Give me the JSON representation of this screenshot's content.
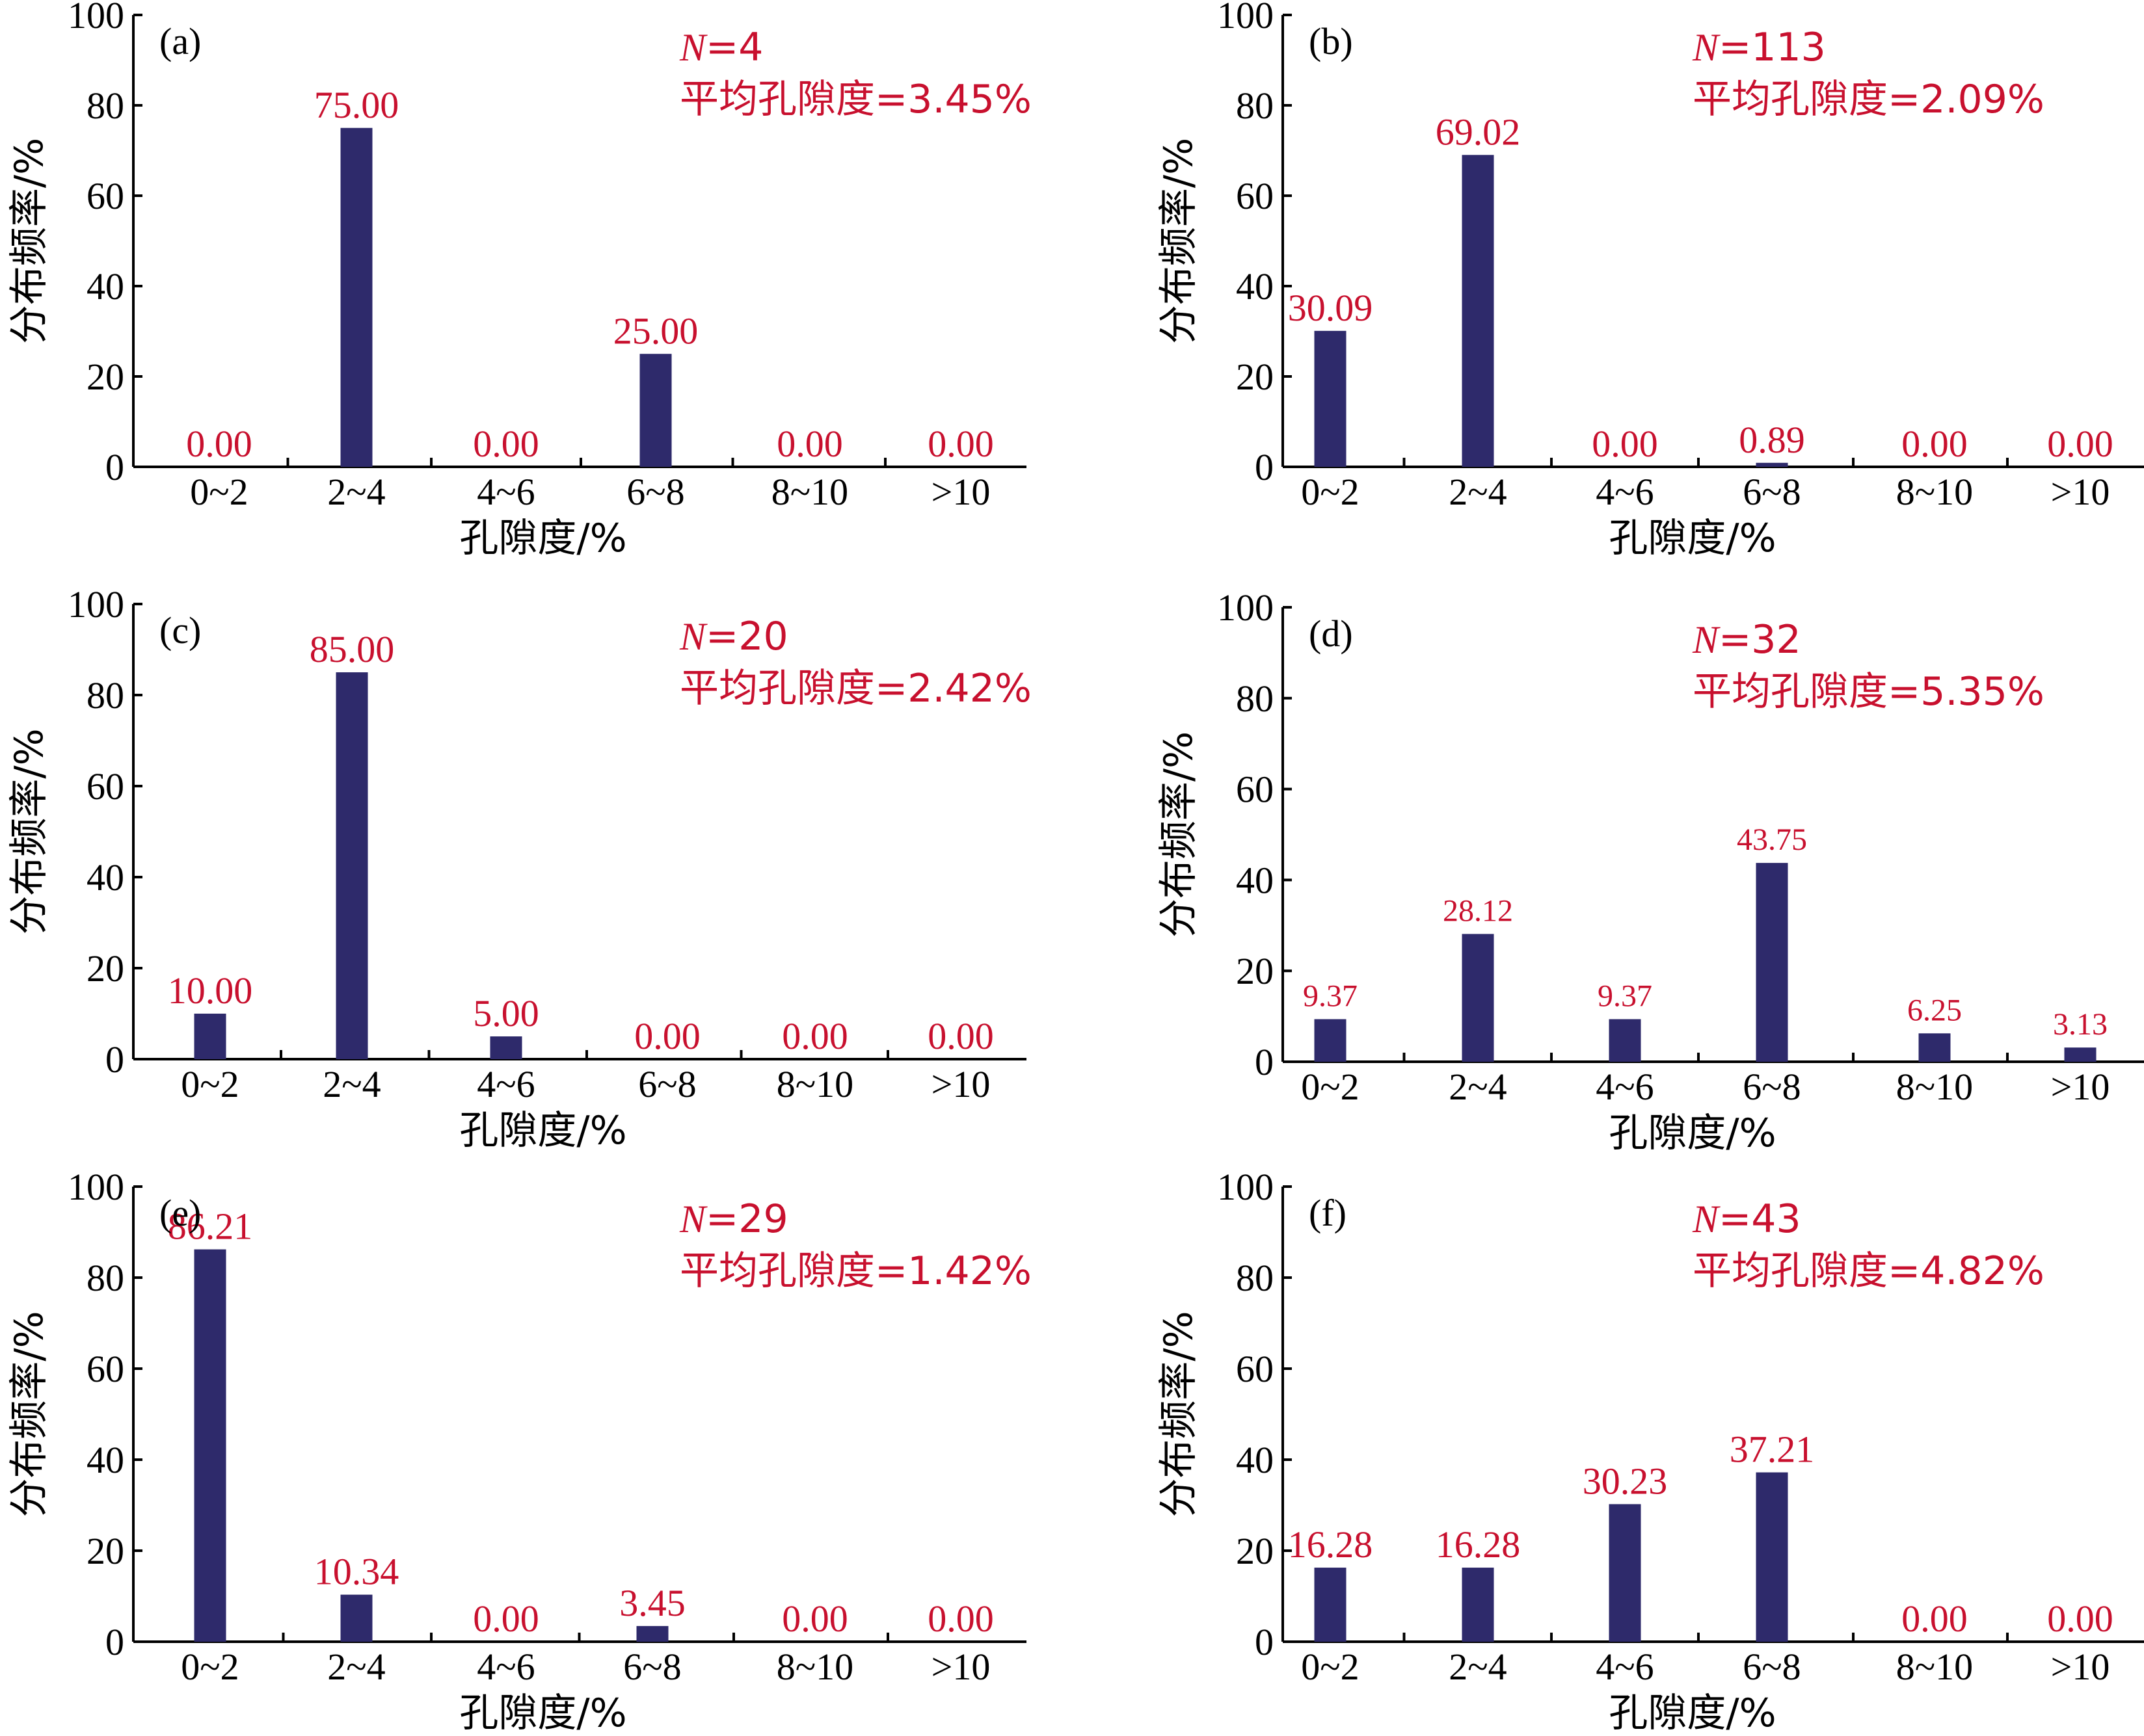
{
  "style": {
    "bar_color": "#2e2a6b",
    "label_color": "#c8102e",
    "axis_color": "#000000"
  },
  "chart_data": [
    {
      "type": "bar",
      "panel": "(a)",
      "categories": [
        "0~2",
        "2~4",
        "4~6",
        "6~8",
        "8~10",
        ">10"
      ],
      "values": [
        0.0,
        75.0,
        0.0,
        25.0,
        0.0,
        0.0
      ],
      "labels": [
        "0.00",
        "75.00",
        "0.00",
        "25.00",
        "0.00",
        "0.00"
      ],
      "ylim": [
        0,
        100
      ],
      "yticks": [
        "0",
        "20",
        "40",
        "60",
        "80",
        "100"
      ],
      "xlabel": "孔隙度/%",
      "ylabel": "分布频率/%",
      "annotation": {
        "n_symbol": "N",
        "n_text": "=4",
        "mean_text": "平均孔隙度=3.45%"
      }
    },
    {
      "type": "bar",
      "panel": "(b)",
      "categories": [
        "0~2",
        "2~4",
        "4~6",
        "6~8",
        "8~10",
        ">10"
      ],
      "values": [
        30.09,
        69.02,
        0.0,
        0.89,
        0.0,
        0.0
      ],
      "labels": [
        "30.09",
        "69.02",
        "0.00",
        "0.89",
        "0.00",
        "0.00"
      ],
      "ylim": [
        0,
        100
      ],
      "yticks": [
        "0",
        "20",
        "40",
        "60",
        "80",
        "100"
      ],
      "xlabel": "孔隙度/%",
      "ylabel": "分布频率/%",
      "annotation": {
        "n_symbol": "N",
        "n_text": "=113",
        "mean_text": "平均孔隙度=2.09%"
      }
    },
    {
      "type": "bar",
      "panel": "(c)",
      "categories": [
        "0~2",
        "2~4",
        "4~6",
        "6~8",
        "8~10",
        ">10"
      ],
      "values": [
        10.0,
        85.0,
        5.0,
        0.0,
        0.0,
        0.0
      ],
      "labels": [
        "10.00",
        "85.00",
        "5.00",
        "0.00",
        "0.00",
        "0.00"
      ],
      "ylim": [
        0,
        100
      ],
      "yticks": [
        "0",
        "20",
        "40",
        "60",
        "80",
        "100"
      ],
      "xlabel": "孔隙度/%",
      "ylabel": "分布频率/%",
      "annotation": {
        "n_symbol": "N",
        "n_text": "=20",
        "mean_text": "平均孔隙度=2.42%"
      }
    },
    {
      "type": "bar",
      "panel": "(d)",
      "categories": [
        "0~2",
        "2~4",
        "4~6",
        "6~8",
        "8~10",
        ">10"
      ],
      "values": [
        9.37,
        28.12,
        9.37,
        43.75,
        6.25,
        3.13
      ],
      "labels": [
        "9.37",
        "28.12",
        "9.37",
        "43.75",
        "6.25",
        "3.13"
      ],
      "ylim": [
        0,
        100
      ],
      "yticks": [
        "0",
        "20",
        "40",
        "60",
        "80",
        "100"
      ],
      "xlabel": "孔隙度/%",
      "ylabel": "分布频率/%",
      "annotation": {
        "n_symbol": "N",
        "n_text": "=32",
        "mean_text": "平均孔隙度=5.35%"
      }
    },
    {
      "type": "bar",
      "panel": "(e)",
      "categories": [
        "0~2",
        "2~4",
        "4~6",
        "6~8",
        "8~10",
        ">10"
      ],
      "values": [
        86.21,
        10.34,
        0.0,
        3.45,
        0.0,
        0.0
      ],
      "labels": [
        "86.21",
        "10.34",
        "0.00",
        "3.45",
        "0.00",
        "0.00"
      ],
      "ylim": [
        0,
        100
      ],
      "yticks": [
        "0",
        "20",
        "40",
        "60",
        "80",
        "100"
      ],
      "xlabel": "孔隙度/%",
      "ylabel": "分布频率/%",
      "annotation": {
        "n_symbol": "N",
        "n_text": "=29",
        "mean_text": "平均孔隙度=1.42%"
      }
    },
    {
      "type": "bar",
      "panel": "(f)",
      "categories": [
        "0~2",
        "2~4",
        "4~6",
        "6~8",
        "8~10",
        ">10"
      ],
      "values": [
        16.28,
        16.28,
        30.23,
        37.21,
        0.0,
        0.0
      ],
      "labels": [
        "16.28",
        "16.28",
        "30.23",
        "37.21",
        "0.00",
        "0.00"
      ],
      "ylim": [
        0,
        100
      ],
      "yticks": [
        "0",
        "20",
        "40",
        "60",
        "80",
        "100"
      ],
      "xlabel": "孔隙度/%",
      "ylabel": "分布频率/%",
      "annotation": {
        "n_symbol": "N",
        "n_text": "=43",
        "mean_text": "平均孔隙度=4.82%"
      }
    }
  ]
}
